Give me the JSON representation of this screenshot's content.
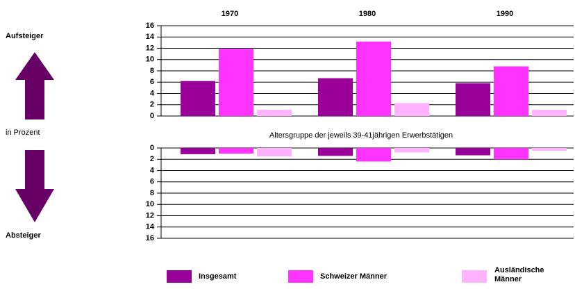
{
  "labels": {
    "up": "Aufsteiger",
    "middle": "in Prozent",
    "down": "Absteiger"
  },
  "chart_data": [
    {
      "type": "bar",
      "subtitle": null,
      "categories": [
        "1970",
        "1980",
        "1990"
      ],
      "series": [
        {
          "name": "Insgesamt",
          "color": "#990099",
          "values": [
            6.2,
            6.7,
            5.8
          ]
        },
        {
          "name": "Schweizer Männer",
          "color": "#ff33ff",
          "values": [
            11.9,
            13.2,
            8.8
          ]
        },
        {
          "name": "Ausländische Männer",
          "color": "#ffb3ff",
          "values": [
            1.1,
            2.3,
            1.1
          ]
        }
      ],
      "ylim": [
        0,
        16
      ],
      "yticks": [
        0,
        2,
        4,
        6,
        8,
        10,
        12,
        14,
        16
      ],
      "grid": true
    },
    {
      "type": "bar",
      "title": "Altersgruppe der jeweils 39-41jährigen Erwerbstätigen",
      "series": [
        {
          "color": "#990099",
          "values": [
            1.1,
            1.4,
            1.3
          ]
        },
        {
          "color": "#ff33ff",
          "values": [
            1.0,
            2.4,
            2.0
          ]
        },
        {
          "color": "#ffb3ff",
          "values": [
            1.5,
            0.8,
            0.5
          ]
        }
      ],
      "ylim": [
        0,
        16
      ],
      "yticks": [
        0,
        2,
        4,
        6,
        8,
        10,
        12,
        14,
        16
      ],
      "grid": true,
      "inverted": true
    }
  ]
}
